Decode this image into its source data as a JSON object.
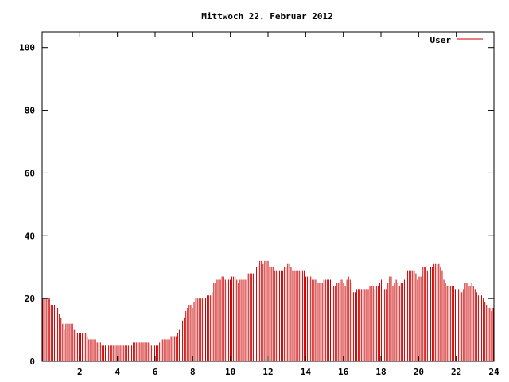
{
  "chart_data": {
    "type": "bar",
    "title": "Mittwoch 22. Februar 2012",
    "xlabel": "",
    "ylabel": "",
    "xlim": [
      0,
      24
    ],
    "ylim": [
      0,
      105
    ],
    "xticks": [
      2,
      4,
      6,
      8,
      10,
      12,
      14,
      16,
      18,
      20,
      22,
      24
    ],
    "yticks": [
      0,
      20,
      40,
      60,
      80,
      100
    ],
    "grid": false,
    "legend_position": "top-right",
    "series": [
      {
        "name": "User",
        "color": "#cc0000",
        "sample_interval_hours": 0.0833,
        "values": [
          20,
          20,
          20,
          20,
          20,
          18,
          18,
          18,
          18,
          17,
          15,
          14,
          12,
          10,
          12,
          12,
          12,
          12,
          12,
          10,
          10,
          9,
          9,
          9,
          9,
          9,
          9,
          8,
          7,
          7,
          7,
          7,
          7,
          6,
          6,
          6,
          5,
          5,
          5,
          5,
          5,
          5,
          5,
          5,
          5,
          5,
          5,
          5,
          5,
          5,
          5,
          5,
          5,
          5,
          5,
          6,
          6,
          6,
          6,
          6,
          6,
          6,
          6,
          6,
          6,
          6,
          5,
          5,
          5,
          5,
          5,
          6,
          7,
          7,
          7,
          7,
          7,
          7,
          8,
          8,
          8,
          8,
          9,
          10,
          10,
          13,
          14,
          16,
          17,
          18,
          18,
          17,
          19,
          20,
          20,
          20,
          20,
          20,
          20,
          20,
          21,
          21,
          21,
          22,
          25,
          25,
          26,
          26,
          26,
          27,
          27,
          26,
          25,
          26,
          26,
          27,
          27,
          27,
          26,
          25,
          26,
          26,
          26,
          26,
          26,
          28,
          28,
          28,
          28,
          29,
          30,
          31,
          32,
          32,
          31,
          32,
          32,
          32,
          30,
          30,
          30,
          29,
          29,
          29,
          29,
          29,
          29,
          30,
          30,
          31,
          31,
          30,
          29,
          29,
          29,
          29,
          29,
          29,
          29,
          29,
          27,
          27,
          26,
          27,
          26,
          26,
          26,
          25,
          25,
          25,
          25,
          26,
          26,
          26,
          26,
          26,
          25,
          24,
          24,
          25,
          25,
          26,
          26,
          25,
          24,
          26,
          27,
          26,
          25,
          22,
          22,
          23,
          23,
          23,
          23,
          23,
          23,
          23,
          23,
          24,
          24,
          24,
          23,
          24,
          24,
          25,
          26,
          23,
          23,
          23,
          25,
          27,
          27,
          24,
          25,
          26,
          25,
          24,
          25,
          25,
          26,
          28,
          29,
          29,
          29,
          29,
          29,
          28,
          26,
          27,
          27,
          30,
          30,
          30,
          29,
          29,
          30,
          30,
          31,
          31,
          31,
          31,
          30,
          29,
          26,
          25,
          24,
          24,
          24,
          24,
          24,
          23,
          23,
          23,
          22,
          22,
          23,
          25,
          25,
          24,
          24,
          25,
          24,
          23,
          22,
          21,
          20,
          21,
          20,
          19,
          18,
          17,
          17,
          16,
          17
        ]
      }
    ]
  }
}
